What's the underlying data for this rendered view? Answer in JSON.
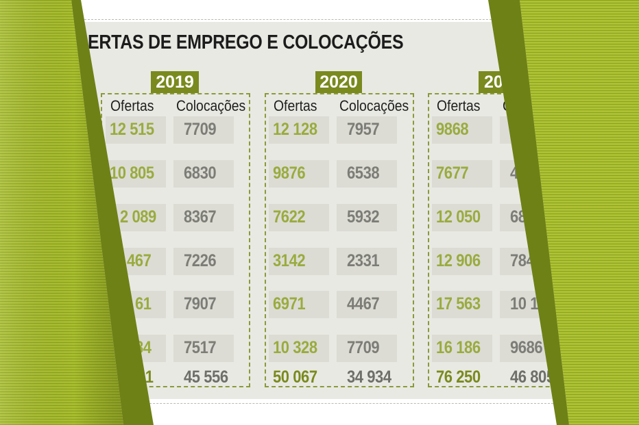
{
  "title": "ERTAS DE EMPREGO E COLOCAÇÕES",
  "columns": {
    "offers": "Ofertas",
    "placements": "Colocações"
  },
  "groups": [
    {
      "year": "2019",
      "rows": [
        {
          "offers": "12 515",
          "placements": "7709"
        },
        {
          "offers": "10 805",
          "placements": "6830"
        },
        {
          "offers": "2 089",
          "placements": "8367"
        },
        {
          "offers": "467",
          "placements": "7226"
        },
        {
          "offers": "61",
          "placements": "7907"
        },
        {
          "offers": "84",
          "placements": "7517"
        }
      ],
      "total": {
        "offers": "21",
        "placements": "45 556"
      }
    },
    {
      "year": "2020",
      "rows": [
        {
          "offers": "12 128",
          "placements": "7957"
        },
        {
          "offers": "9876",
          "placements": "6538"
        },
        {
          "offers": "7622",
          "placements": "5932"
        },
        {
          "offers": "3142",
          "placements": "2331"
        },
        {
          "offers": "6971",
          "placements": "4467"
        },
        {
          "offers": "10 328",
          "placements": "7709"
        }
      ],
      "total": {
        "offers": "50 067",
        "placements": "34 934"
      }
    },
    {
      "year": "20",
      "header_placements": "C",
      "rows": [
        {
          "offers": "9868",
          "placements": ""
        },
        {
          "offers": "7677",
          "placements": "4"
        },
        {
          "offers": "12 050",
          "placements": "68"
        },
        {
          "offers": "12 906",
          "placements": "784"
        },
        {
          "offers": "17 563",
          "placements": "10 12"
        },
        {
          "offers": "16 186",
          "placements": "9686"
        }
      ],
      "total": {
        "offers": "76 250",
        "placements": "46 805"
      }
    }
  ],
  "colors": {
    "accent_dark": "#7a8a1e",
    "accent_light": "#9aab3e",
    "paper_green": "#a7bc2c",
    "cell_bg": "#dcdcd5",
    "panel_bg": "#e9e9e3"
  }
}
